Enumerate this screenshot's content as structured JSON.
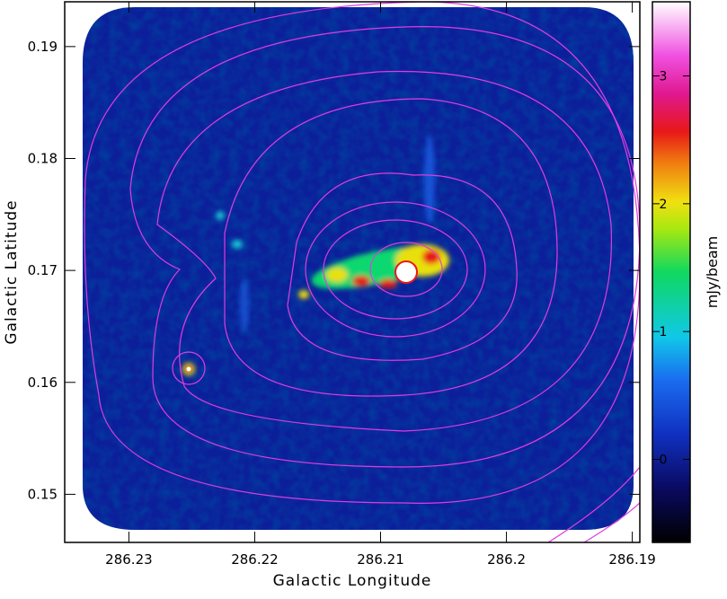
{
  "chart_data": {
    "type": "image",
    "xlabel": "Galactic Longitude",
    "ylabel": "Galactic Latitude",
    "xlim": [
      286.2351,
      286.1894
    ],
    "xticks": [
      286.23,
      286.22,
      286.21,
      286.2,
      286.19
    ],
    "ylim": [
      0.1457,
      0.194
    ],
    "yticks": [
      0.15,
      0.16,
      0.17,
      0.18,
      0.19
    ],
    "colorbar": {
      "label": "mJy/beam",
      "lim": [
        -0.65,
        3.58
      ],
      "ticks": [
        0,
        1,
        2,
        3
      ]
    },
    "contour_color": "#e03ce0"
  }
}
